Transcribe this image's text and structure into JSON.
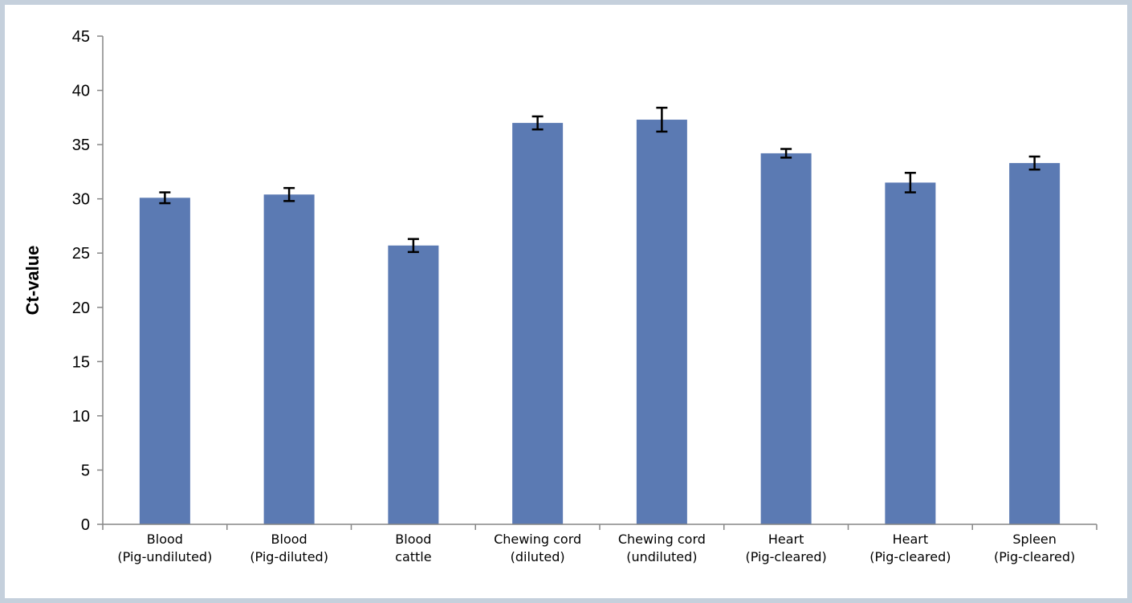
{
  "chart_data": {
    "type": "bar",
    "title": "",
    "xlabel": "",
    "ylabel": "Ct-value",
    "ylim": [
      0,
      45
    ],
    "ytick_step": 5,
    "grid": false,
    "legend": "none",
    "bar_color": "#5b7ab3",
    "categories": [
      [
        "Blood",
        "(Pig-undiluted)"
      ],
      [
        "Blood",
        "(Pig-diluted)"
      ],
      [
        "Blood",
        "cattle"
      ],
      [
        "Chewing cord",
        "(diluted)"
      ],
      [
        "Chewing cord",
        "(undiluted)"
      ],
      [
        "Heart",
        "(Pig-cleared)"
      ],
      [
        "Heart",
        "(Pig-cleared)"
      ],
      [
        "Spleen",
        "(Pig-cleared)"
      ]
    ],
    "values": [
      30.1,
      30.4,
      25.7,
      37.0,
      37.3,
      34.2,
      31.5,
      33.3
    ],
    "errors": [
      0.5,
      0.6,
      0.6,
      0.6,
      1.1,
      0.4,
      0.9,
      0.6
    ]
  }
}
